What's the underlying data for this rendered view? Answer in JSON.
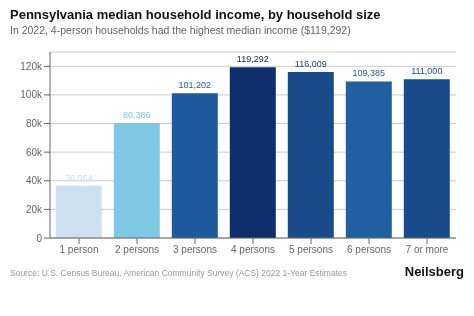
{
  "chart_data": {
    "type": "bar",
    "title": "Pennsylvania median household income, by household size",
    "subtitle": "In 2022, 4-person households had the highest median income ($119,292)",
    "categories": [
      "1 person",
      "2 persons",
      "3 persons",
      "4 persons",
      "5 persons",
      "6 persons",
      "7 or more"
    ],
    "values": [
      36564,
      80386,
      101202,
      119292,
      116009,
      109385,
      111000
    ],
    "value_labels": [
      "36,564",
      "80,386",
      "101,202",
      "119,292",
      "116,009",
      "109,385",
      "111,000"
    ],
    "data_labels": true,
    "colors": [
      "#cce0f0",
      "#7ec8e3",
      "#1e5a9c",
      "#0d2d6b",
      "#1a4a8a",
      "#2060a0",
      "#1a4a8a"
    ],
    "ylim": [
      0,
      130000
    ],
    "yticks": [
      0,
      {
        "value": 20000,
        "label": "20k"
      },
      {
        "value": 40000,
        "label": "40k"
      },
      {
        "value": 60000,
        "label": "60k"
      },
      {
        "value": 80000,
        "label": "80k"
      },
      {
        "value": 100000,
        "label": "100k"
      },
      {
        "value": 120000,
        "label": "120k"
      }
    ],
    "grid": true,
    "source": "Source: U.S. Census Bureau, American Community Survey (ACS) 2022 1-Year Estimates",
    "brand": "Neilsberg"
  }
}
